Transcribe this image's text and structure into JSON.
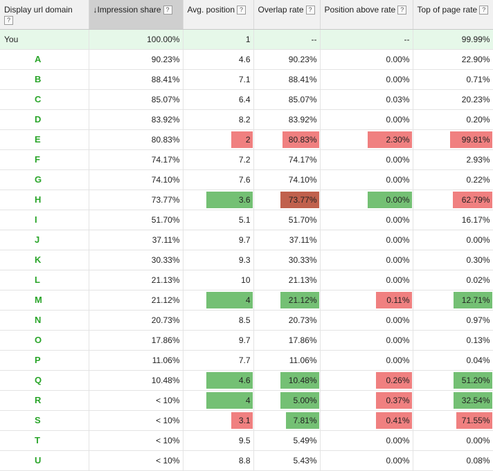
{
  "columns": [
    {
      "label": "Display url domain"
    },
    {
      "label": "Impression share",
      "sort_icon": "↓"
    },
    {
      "label": "Avg. position"
    },
    {
      "label": "Overlap rate"
    },
    {
      "label": "Position above rate"
    },
    {
      "label": "Top of page rate"
    }
  ],
  "help_glyph": "?",
  "rows": [
    {
      "domain": "You",
      "impression": "100.00%",
      "avg": "1",
      "overlap": "--",
      "above": "--",
      "top": "99.99%"
    },
    {
      "domain": "A",
      "impression": "90.23%",
      "avg": "4.6",
      "overlap": "90.23%",
      "above": "0.00%",
      "top": "22.90%"
    },
    {
      "domain": "B",
      "impression": "88.41%",
      "avg": "7.1",
      "overlap": "88.41%",
      "above": "0.00%",
      "top": "0.71%"
    },
    {
      "domain": "C",
      "impression": "85.07%",
      "avg": "6.4",
      "overlap": "85.07%",
      "above": "0.03%",
      "top": "20.23%"
    },
    {
      "domain": "D",
      "impression": "83.92%",
      "avg": "8.2",
      "overlap": "83.92%",
      "above": "0.00%",
      "top": "0.20%"
    },
    {
      "domain": "E",
      "impression": "80.83%",
      "avg": "2",
      "overlap": "80.83%",
      "above": "2.30%",
      "top": "99.81%"
    },
    {
      "domain": "F",
      "impression": "74.17%",
      "avg": "7.2",
      "overlap": "74.17%",
      "above": "0.00%",
      "top": "2.93%"
    },
    {
      "domain": "G",
      "impression": "74.10%",
      "avg": "7.6",
      "overlap": "74.10%",
      "above": "0.00%",
      "top": "0.22%"
    },
    {
      "domain": "H",
      "impression": "73.77%",
      "avg": "3.6",
      "overlap": "73.77%",
      "above": "0.00%",
      "top": "62.79%"
    },
    {
      "domain": "I",
      "impression": "51.70%",
      "avg": "5.1",
      "overlap": "51.70%",
      "above": "0.00%",
      "top": "16.17%"
    },
    {
      "domain": "J",
      "impression": "37.11%",
      "avg": "9.7",
      "overlap": "37.11%",
      "above": "0.00%",
      "top": "0.00%"
    },
    {
      "domain": "K",
      "impression": "30.33%",
      "avg": "9.3",
      "overlap": "30.33%",
      "above": "0.00%",
      "top": "0.30%"
    },
    {
      "domain": "L",
      "impression": "21.13%",
      "avg": "10",
      "overlap": "21.13%",
      "above": "0.00%",
      "top": "0.02%"
    },
    {
      "domain": "M",
      "impression": "21.12%",
      "avg": "4",
      "overlap": "21.12%",
      "above": "0.11%",
      "top": "12.71%"
    },
    {
      "domain": "N",
      "impression": "20.73%",
      "avg": "8.5",
      "overlap": "20.73%",
      "above": "0.00%",
      "top": "0.97%"
    },
    {
      "domain": "O",
      "impression": "17.86%",
      "avg": "9.7",
      "overlap": "17.86%",
      "above": "0.00%",
      "top": "0.13%"
    },
    {
      "domain": "P",
      "impression": "11.06%",
      "avg": "7.7",
      "overlap": "11.06%",
      "above": "0.00%",
      "top": "0.04%"
    },
    {
      "domain": "Q",
      "impression": "10.48%",
      "avg": "4.6",
      "overlap": "10.48%",
      "above": "0.26%",
      "top": "51.20%"
    },
    {
      "domain": "R",
      "impression": "< 10%",
      "avg": "4",
      "overlap": "5.00%",
      "above": "0.37%",
      "top": "32.54%"
    },
    {
      "domain": "S",
      "impression": "< 10%",
      "avg": "3.1",
      "overlap": "7.81%",
      "above": "0.41%",
      "top": "71.55%"
    },
    {
      "domain": "T",
      "impression": "< 10%",
      "avg": "9.5",
      "overlap": "5.49%",
      "above": "0.00%",
      "top": "0.00%"
    },
    {
      "domain": "U",
      "impression": "< 10%",
      "avg": "8.8",
      "overlap": "5.43%",
      "above": "0.00%",
      "top": "0.08%"
    }
  ],
  "highlight_colors": {
    "red": "#f08080",
    "green": "#74c074",
    "dark": "#c0614d",
    "you_row": "#e6f8e9",
    "sorted_header": "#cfcfcf"
  }
}
